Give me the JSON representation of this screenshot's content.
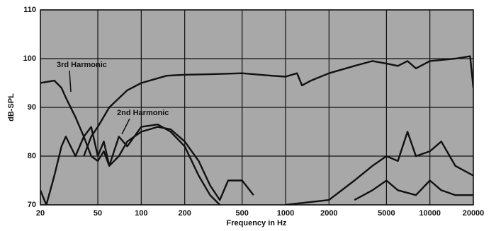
{
  "chart_data": {
    "type": "line",
    "x_label": "Frequency in Hz",
    "y_label": "dB-SPL",
    "xscale": "log",
    "grid": true,
    "xlim": [
      20,
      20000
    ],
    "xticks": [
      20,
      50,
      100,
      200,
      500,
      1000,
      2000,
      5000,
      10000,
      20000
    ],
    "ylim": [
      70,
      110
    ],
    "yticks": [
      70,
      80,
      90,
      100,
      110
    ],
    "series": [
      {
        "color": "#111111",
        "x": [
          40,
          45,
          50,
          60,
          80,
          100,
          150,
          200,
          300,
          500,
          800,
          1000,
          1200,
          1300,
          1500,
          2000,
          3000,
          4000,
          5000,
          6000,
          7000,
          8000,
          10000,
          15000,
          19000,
          20000
        ],
        "values": [
          80,
          84,
          86,
          90,
          93.5,
          95,
          96.5,
          96.7,
          96.8,
          97,
          96.5,
          96.3,
          97,
          94.5,
          95.5,
          97,
          98.5,
          99.5,
          99,
          98.5,
          99.5,
          98,
          99.5,
          100,
          100.5,
          94
        ]
      },
      {
        "name": "3rd Harmonic",
        "color": "#111111",
        "x": [
          20,
          25,
          28,
          30,
          35,
          40,
          45,
          50,
          55,
          60,
          70,
          80,
          100,
          130,
          160,
          200,
          250,
          300,
          350,
          400,
          500,
          600,
          2000,
          3000,
          4000,
          5000,
          6000,
          8000,
          10000,
          12000,
          15000,
          20000
        ],
        "values": [
          95,
          95.5,
          94,
          92,
          88,
          84,
          80,
          79,
          81,
          78,
          80,
          83,
          85,
          86,
          85.5,
          83,
          79,
          74,
          71,
          75,
          75,
          72,
          null,
          71,
          73,
          75,
          73,
          72,
          75,
          73,
          72,
          72
        ]
      },
      {
        "name": "2nd Harmonic",
        "color": "#111111",
        "x": [
          20,
          22,
          25,
          28,
          30,
          35,
          40,
          45,
          50,
          55,
          60,
          70,
          80,
          100,
          130,
          160,
          200,
          250,
          300,
          350,
          700,
          1000,
          2000,
          3000,
          4000,
          5000,
          6000,
          7000,
          8000,
          10000,
          12000,
          15000,
          20000
        ],
        "values": [
          73,
          70,
          76,
          82,
          84,
          80,
          84,
          86,
          80,
          83,
          78,
          84,
          82,
          86,
          86.5,
          85,
          82,
          76,
          72,
          70,
          null,
          70,
          71,
          75,
          78,
          80,
          79,
          85,
          80,
          81,
          83,
          78,
          76
        ]
      }
    ]
  }
}
